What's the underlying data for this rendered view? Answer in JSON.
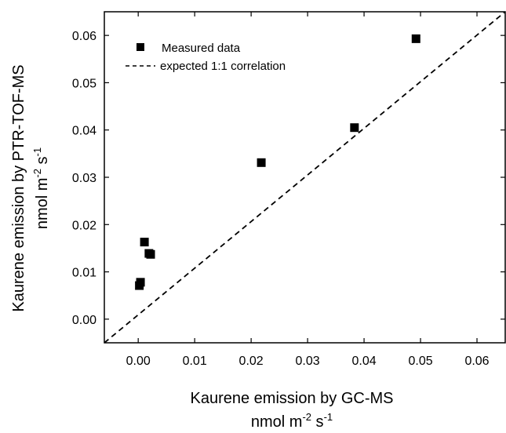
{
  "chart_data": {
    "type": "scatter",
    "series": [
      {
        "name": "Measured data",
        "marker": "square",
        "color": "#000000",
        "points": [
          {
            "x": 0.0002,
            "y": 0.0071
          },
          {
            "x": 0.0004,
            "y": 0.0078
          },
          {
            "x": 0.0011,
            "y": 0.0163
          },
          {
            "x": 0.0019,
            "y": 0.0139
          },
          {
            "x": 0.0022,
            "y": 0.0137
          },
          {
            "x": 0.0218,
            "y": 0.0331
          },
          {
            "x": 0.0383,
            "y": 0.0405
          },
          {
            "x": 0.0492,
            "y": 0.0593
          }
        ]
      },
      {
        "name": "expected 1:1 correlation",
        "style": "dashed",
        "color": "#000000",
        "points": [
          {
            "x": -0.006,
            "y": -0.005
          },
          {
            "x": 0.065,
            "y": 0.065
          }
        ]
      }
    ],
    "xlim": [
      -0.006,
      0.065
    ],
    "ylim": [
      -0.005,
      0.065
    ],
    "xticks": [
      0.0,
      0.01,
      0.02,
      0.03,
      0.04,
      0.05,
      0.06
    ],
    "yticks": [
      0.0,
      0.01,
      0.02,
      0.03,
      0.04,
      0.05,
      0.06
    ],
    "xtick_labels": [
      "0.00",
      "0.01",
      "0.02",
      "0.03",
      "0.04",
      "0.05",
      "0.06"
    ],
    "ytick_labels": [
      "0.00",
      "0.01",
      "0.02",
      "0.03",
      "0.04",
      "0.05",
      "0.06"
    ],
    "xlabel": {
      "line1": "Kaurene emission by GC-MS",
      "unit_pre": "nmol m",
      "unit_exp1": "-2",
      "unit_mid": " s",
      "unit_exp2": "-1"
    },
    "ylabel": {
      "line1": "Kaurene emission by PTR-TOF-MS",
      "unit_pre": "nmol m",
      "unit_exp1": "-2",
      "unit_mid": " s",
      "unit_exp2": "-1"
    },
    "legend": {
      "placement": "top-left",
      "entries": [
        {
          "label": "Measured data",
          "symbol": "square"
        },
        {
          "label": "expected 1:1 correlation",
          "symbol": "dashed-line"
        }
      ]
    },
    "grid": false
  }
}
